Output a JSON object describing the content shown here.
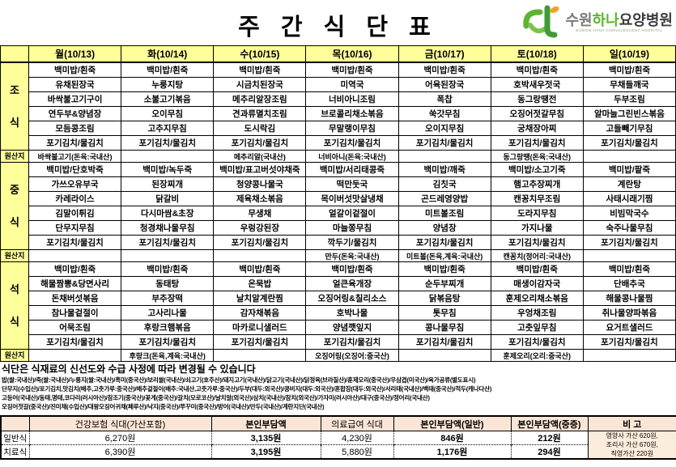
{
  "title": "주 간 식 단 표",
  "logo": {
    "suwon": "수원",
    "hana": "하나",
    "hospital": "요양병원",
    "subtitle": "SUWON HANA CONVALESCENT HOSPITAL",
    "green": "#5cb531",
    "orange": "#f5a21f"
  },
  "colors": {
    "header_yellow": "#ffff99",
    "price_header_cream": "#fbe5d6"
  },
  "menu_table": {
    "days": [
      "월(10/13)",
      "화(10/14)",
      "수(10/15)",
      "목(10/16)",
      "금(10/17)",
      "토(10/18)",
      "일(10/19)"
    ],
    "sections": [
      {
        "label": "조식",
        "type": "meal",
        "rows": [
          [
            "백미밥/흰죽",
            "백미밥/흰죽",
            "백미밥/흰죽",
            "백미밥/흰죽",
            "백미밥/흰죽",
            "백미밥/흰죽",
            "백미밥/흰죽"
          ],
          [
            "유채된장국",
            "누룽지탕",
            "시금치된장국",
            "미역국",
            "어육된장국",
            "호박새우젓국",
            "무채들깨국"
          ],
          [
            "바싹불고기구이",
            "소불고기볶음",
            "메추리알장조림",
            "너비아니조림",
            "폭찹",
            "동그랑땡전",
            "두부조림"
          ],
          [
            "연두부&양념장",
            "오이무침",
            "견과류멸치조림",
            "브로콜리채소볶음",
            "쑥갓무침",
            "오징어젓갈무침",
            "알마늘그린빈스볶음"
          ],
          [
            "모듬콩조림",
            "고추지무침",
            "도시락김",
            "무말랭이무침",
            "오이지무침",
            "궁채장아찌",
            "고들빼기무침"
          ],
          [
            "포기김치/물김치",
            "포기김치/물김치",
            "포기김치/물김치",
            "포기김치/물김치",
            "포기김치/물김치",
            "포기김치/물김치",
            "포기김치/물김치"
          ]
        ]
      },
      {
        "label": "원산지",
        "type": "origin",
        "cells": [
          "바싹불고기(돈육:국내산)",
          "",
          "메추리알(국내산)",
          "너비아니(돈육:국내산)",
          "",
          "동그랑땡(돈육:국내산)",
          ""
        ]
      },
      {
        "label": "중식",
        "type": "meal",
        "rows": [
          [
            "백미밥/단호박죽",
            "백미밥/녹두죽",
            "백미밥/표고버섯야채죽",
            "백미밥/서리태콩죽",
            "백미밥/깨죽",
            "백미밥/소고기죽",
            "백미밥/팥죽"
          ],
          [
            "가쓰오유부국",
            "된장찌개",
            "청양콩나물국",
            "떡만둣국",
            "김칫국",
            "햄고추장찌개",
            "계란탕"
          ],
          [
            "카레라이스",
            "닭갈비",
            "제육채소볶음",
            "목이버섯맛살냉채",
            "곤드레영양밥",
            "캔꽁치무조림",
            "사태시래기찜"
          ],
          [
            "김말이튀김",
            "다시마쌈&초장",
            "무생채",
            "얼갈이겉절이",
            "미트볼조림",
            "도라지무침",
            "비빔막국수"
          ],
          [
            "단무지무침",
            "청경채나물무침",
            "우렁강된장",
            "마늘쫑무침",
            "양념장",
            "가지나물",
            "숙주나물무침"
          ],
          [
            "포기김치/물김치",
            "포기김치/물김치",
            "포기김치/물김치",
            "깍두기/물김치",
            "포기김치/물김치",
            "포기김치/물김치",
            "포기김치/물김치"
          ]
        ]
      },
      {
        "label": "원산지",
        "type": "origin",
        "cells": [
          "",
          "",
          "",
          "만두(돈육:국내산)",
          "미트볼(돈육,계육:국내산)",
          "캔꽁치(정어리:국내산)",
          ""
        ]
      },
      {
        "label": "석식",
        "type": "meal",
        "rows": [
          [
            "백미밥/흰죽",
            "백미밥/흰죽",
            "백미밥/흰죽",
            "백미밥/흰죽",
            "백미밥/흰죽",
            "백미밥/흰죽",
            "백미밥/흰죽"
          ],
          [
            "해물짬뽕&당면사리",
            "동태탕",
            "온묵밥",
            "얼큰육개장",
            "순두부찌개",
            "매생이감자국",
            "단배추국"
          ],
          [
            "돈채버섯볶음",
            "부추장떡",
            "날치알계란찜",
            "오징어링&칠리소스",
            "닭볶음탕",
            "훈제오리채소볶음",
            "해물콩나물찜"
          ],
          [
            "참나물겉절이",
            "고사리나물",
            "감자채볶음",
            "호박나물",
            "톳무침",
            "우엉채조림",
            "취나물양파볶음"
          ],
          [
            "어묵조림",
            "후랑크햄볶음",
            "마카로니샐러드",
            "양념깻잎지",
            "콩나물무침",
            "고춧잎무침",
            "요거트샐러드"
          ],
          [
            "포기김치/물김치",
            "포기김치/물김치",
            "포기김치/물김치",
            "포기김치/물김치",
            "포기김치/물김치",
            "포기김치/물김치",
            "포기김치/물김치"
          ]
        ]
      },
      {
        "label": "원산지",
        "type": "origin",
        "cells": [
          "",
          "후랑크(돈육,계육:국내산)",
          "",
          "오징어링(오징어:중국산)",
          "",
          "훈제오리(오리:중국산)",
          ""
        ]
      }
    ]
  },
  "notes": {
    "notice": "식단은 식재료의  신선도와 수급 사정에 따라 변경될 수 있습니다",
    "origin_details": [
      "밥(쌀:국내산)/죽(쌀:국내산)/누룽지(쌀:국내산)/흑미(중국산)/보리쌀(국내산)/쇠고기(호주산)/돼지고기(국내산)/닭고기(국내산)/닭정육(브라질산)/훈제오리(중국산)/우삼겹(미국산)/육가공류(별도표시)",
      "단무지(수입산)/포기김치,맛김치(배추,고춧가루:중국산)/배추겉절이(배추:국내산,고춧가루:중국산)/두부(대두:외국산)/콩비지(대두:외국산)/혼합장(대두:외국산)/서리태(국내산)/백태(중국산)/적두(캐나다산)",
      "고등어(국내산)/동태,명태,코다리(러시아산)/참조기(중국산)/꽃게(중국산)/갈치(모로코산)/날치알(외국산)/삼치(국내산)/참치(외국산)/가자미(러시아산)/대구(중국산)/정어리(국내산)",
      "오징어젓갈(중국산)/진미채(수입산)/대왕오징어귀채(페루산)/낙지(중국산)/쭈꾸미(중국산)/방어(국내산)/만두(국내산)/계란지단(국내산)"
    ]
  },
  "price_table": {
    "headers": [
      {
        "label": "건강보험 식대(가산포함)",
        "bold": false
      },
      {
        "label": "본인부담액",
        "bold": true
      },
      {
        "label": "의료급여 식대",
        "bold": false
      },
      {
        "label": "본인부담액(일반)",
        "bold": true
      },
      {
        "label": "본인부담액(중증)",
        "bold": true
      },
      {
        "label": "비 고",
        "bold": true
      }
    ],
    "bold_value_cols": [
      1,
      3,
      4
    ],
    "rows": [
      {
        "label": "일반식",
        "values": [
          "6,270원",
          "3,135원",
          "4,230원",
          "846원",
          "212원"
        ]
      },
      {
        "label": "치료식",
        "values": [
          "6,390원",
          "3,195원",
          "5,880원",
          "1,176원",
          "294원"
        ]
      }
    ],
    "remark_lines": [
      "영양사 가산 620원,",
      "조리사 가산 670원,",
      "직영가산 220원"
    ]
  }
}
